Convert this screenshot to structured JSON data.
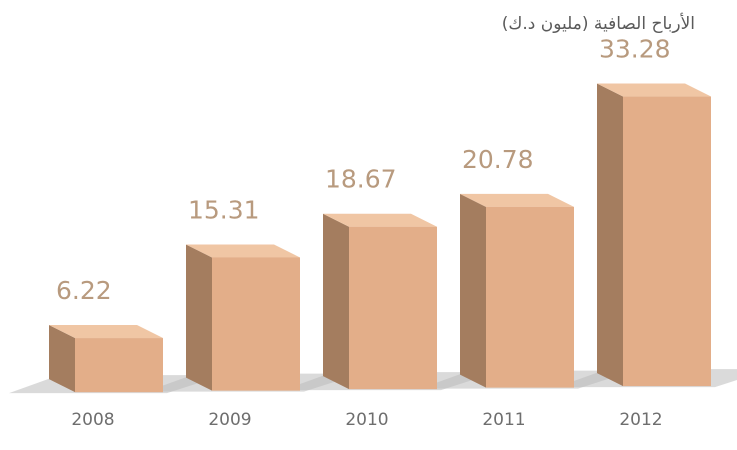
{
  "chart_data": {
    "type": "bar",
    "title": "الأرباح الصافية (مليون د.ك)",
    "categories": [
      "2008",
      "2009",
      "2010",
      "2011",
      "2012"
    ],
    "values": [
      6.22,
      15.31,
      18.67,
      20.78,
      33.28
    ],
    "value_labels": [
      "6.22",
      "15.31",
      "18.67",
      "20.78",
      "33.28"
    ],
    "style": "3d-box",
    "grid": false,
    "colors": {
      "front": "#e3ae89",
      "side": "#a47d5f",
      "top": "#f0c6a4",
      "shadow": "#bcbcbc",
      "value_text": "#b89a7e",
      "tick_text": "#6e6e6e"
    }
  }
}
